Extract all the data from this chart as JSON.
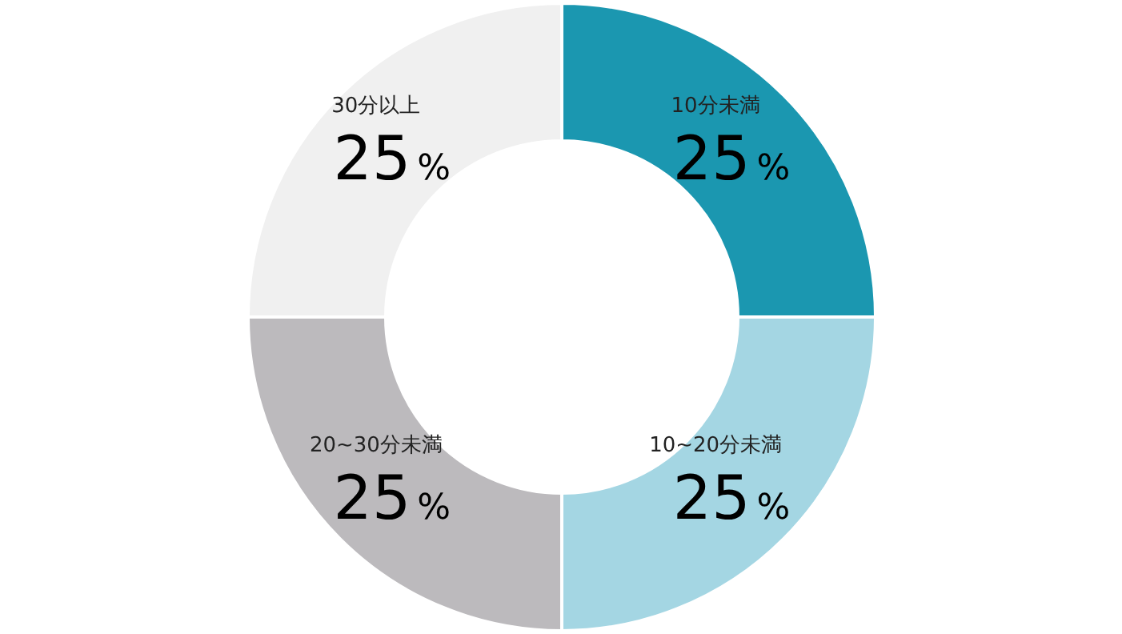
{
  "chart_data": {
    "type": "donut",
    "categories": [
      "10分未満",
      "10~20分未満",
      "20~30分未満",
      "30分以上"
    ],
    "values": [
      25,
      25,
      25,
      25
    ],
    "colors": [
      "#1b97b0",
      "#a4d6e3",
      "#bcbabd",
      "#f0f0f0"
    ],
    "value_labels": [
      "25%",
      "25%",
      "25%",
      "25%"
    ]
  }
}
